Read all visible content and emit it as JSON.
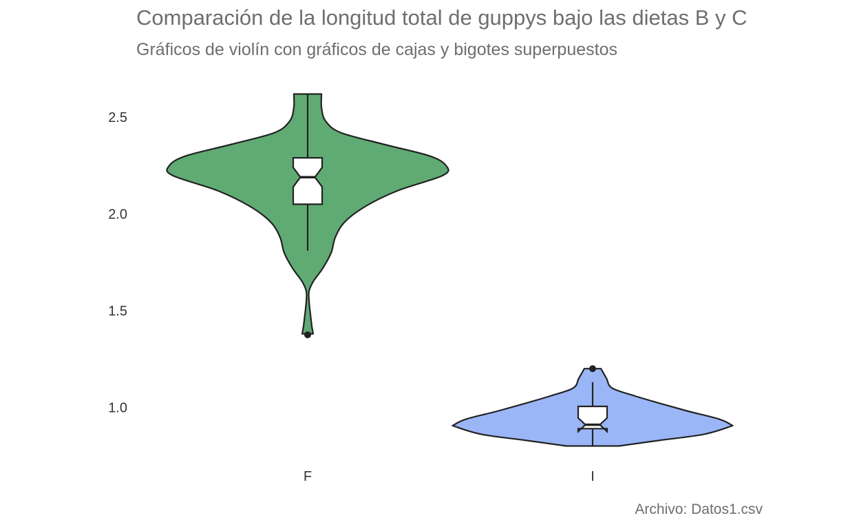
{
  "chart_data": {
    "type": "violin",
    "title": "Comparación de la longitud total de guppys bajo las dietas B y C",
    "subtitle": "Gráficos de violín con gráficos de cajas y bigotes superpuestos",
    "caption": "Archivo: Datos1.csv",
    "xlabel": "",
    "ylabel": "",
    "ylim": [
      0.72,
      2.7
    ],
    "yticks": [
      "1.0",
      "1.5",
      "2.0",
      "2.5"
    ],
    "grid": false,
    "legend": "none",
    "categories": [
      "F",
      "I"
    ],
    "groups": [
      {
        "category": "F",
        "color": "#5fab73",
        "violin_range": [
          1.38,
          2.62
        ],
        "density_profile": [
          {
            "y": 1.38,
            "w": 0.04
          },
          {
            "y": 1.42,
            "w": 0.03
          },
          {
            "y": 1.48,
            "w": 0.02
          },
          {
            "y": 1.55,
            "w": 0.01
          },
          {
            "y": 1.6,
            "w": 0.01
          },
          {
            "y": 1.65,
            "w": 0.04
          },
          {
            "y": 1.72,
            "w": 0.11
          },
          {
            "y": 1.8,
            "w": 0.17
          },
          {
            "y": 1.88,
            "w": 0.2
          },
          {
            "y": 1.96,
            "w": 0.27
          },
          {
            "y": 2.04,
            "w": 0.42
          },
          {
            "y": 2.12,
            "w": 0.65
          },
          {
            "y": 2.2,
            "w": 0.98
          },
          {
            "y": 2.25,
            "w": 1.0
          },
          {
            "y": 2.3,
            "w": 0.88
          },
          {
            "y": 2.36,
            "w": 0.55
          },
          {
            "y": 2.42,
            "w": 0.24
          },
          {
            "y": 2.48,
            "w": 0.13
          },
          {
            "y": 2.55,
            "w": 0.1
          },
          {
            "y": 2.62,
            "w": 0.1
          }
        ],
        "box": {
          "q1": 2.05,
          "median": 2.19,
          "q3": 2.29,
          "whisker_low": 1.81,
          "whisker_high": 2.62,
          "notch_low": 2.14,
          "notch_high": 2.24
        },
        "outliers": [
          1.375
        ]
      },
      {
        "category": "I",
        "color": "#9ab6f7",
        "violin_range": [
          0.8,
          1.2
        ],
        "density_profile": [
          {
            "y": 0.8,
            "w": 0.19
          },
          {
            "y": 0.83,
            "w": 0.49
          },
          {
            "y": 0.86,
            "w": 0.8
          },
          {
            "y": 0.9,
            "w": 0.99
          },
          {
            "y": 0.91,
            "w": 1.0
          },
          {
            "y": 0.94,
            "w": 0.91
          },
          {
            "y": 0.98,
            "w": 0.69
          },
          {
            "y": 1.02,
            "w": 0.49
          },
          {
            "y": 1.06,
            "w": 0.3
          },
          {
            "y": 1.1,
            "w": 0.14
          },
          {
            "y": 1.15,
            "w": 0.1
          },
          {
            "y": 1.2,
            "w": 0.06
          }
        ],
        "box": {
          "q1": 0.89,
          "median": 0.91,
          "q3": 1.005,
          "whisker_low": 0.8,
          "whisker_high": 1.13,
          "notch_low": 0.875,
          "notch_high": 0.945
        },
        "outliers": [
          1.2
        ]
      }
    ]
  }
}
